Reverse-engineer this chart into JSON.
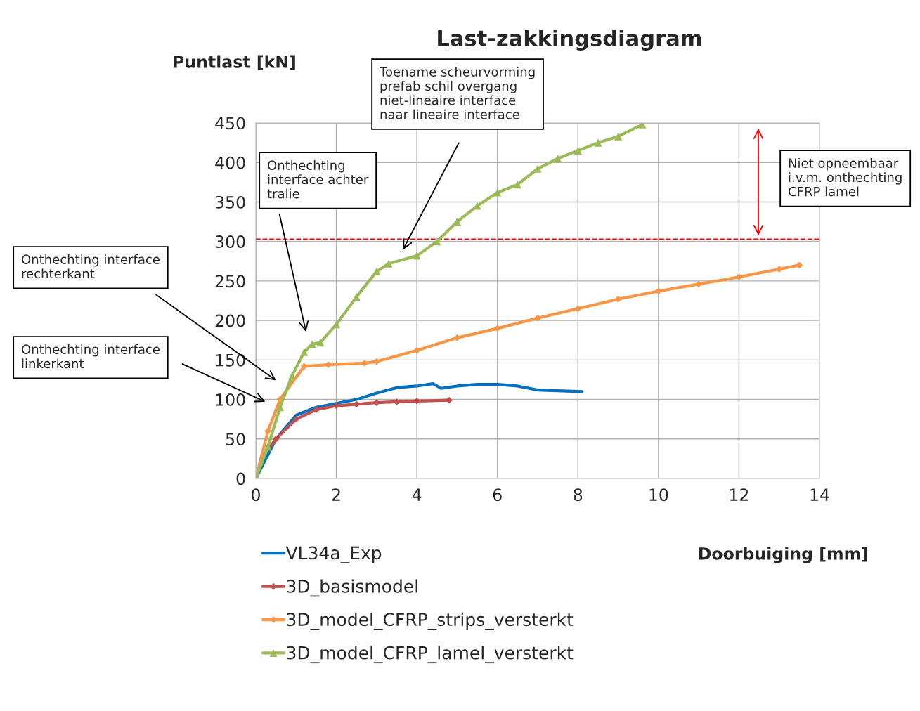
{
  "chart_data": {
    "type": "line",
    "title": "Last-zakkingsdiagram",
    "xlabel": "Doorbuiging [mm]",
    "ylabel": "Puntlast [kN]",
    "xlim": [
      0,
      14
    ],
    "xticks": [
      0,
      2,
      4,
      6,
      8,
      10,
      12,
      14
    ],
    "ylim": [
      0,
      450
    ],
    "yticks": [
      0,
      50,
      100,
      150,
      200,
      250,
      300,
      350,
      400,
      450
    ],
    "grid": true,
    "legend": "bottom",
    "series": [
      {
        "name": "VL34a_Exp",
        "color": "#0070c0",
        "marker": "none",
        "x": [
          0,
          0.5,
          1,
          1.5,
          2,
          2.5,
          3,
          3.5,
          4,
          4.4,
          4.6,
          5,
          5.5,
          6,
          6.5,
          7,
          7.5,
          8.1
        ],
        "values": [
          0,
          50,
          80,
          90,
          95,
          100,
          108,
          115,
          117,
          120,
          114,
          117,
          119,
          119,
          117,
          112,
          111,
          110
        ]
      },
      {
        "name": "3D_basismodel",
        "color": "#c0504d",
        "marker": "diamond",
        "x": [
          0,
          0.2,
          0.5,
          1,
          1.5,
          2,
          2.5,
          3,
          3.5,
          4,
          4.8
        ],
        "values": [
          0,
          30,
          50,
          75,
          87,
          92,
          94,
          96,
          97,
          98,
          99
        ]
      },
      {
        "name": "3D_model_CFRP_strips_versterkt",
        "color": "#f79646",
        "marker": "diamond",
        "x": [
          0,
          0.3,
          0.6,
          1.2,
          1.8,
          2.7,
          3,
          4,
          5,
          6,
          7,
          8,
          9,
          10,
          11,
          12,
          13,
          13.5
        ],
        "values": [
          0,
          60,
          100,
          142,
          144,
          146,
          148,
          162,
          178,
          190,
          203,
          215,
          227,
          237,
          246,
          255,
          265,
          270
        ]
      },
      {
        "name": "3D_model_CFRP_lamel_versterkt",
        "color": "#9bbb59",
        "marker": "triangle",
        "x": [
          0,
          0.3,
          0.6,
          0.9,
          1.2,
          1.4,
          1.6,
          2,
          2.5,
          3,
          3.3,
          4,
          4.5,
          5,
          5.5,
          6,
          6.5,
          7,
          7.5,
          8,
          8.5,
          9,
          9.6
        ],
        "values": [
          0,
          40,
          90,
          130,
          160,
          170,
          172,
          195,
          230,
          262,
          272,
          282,
          300,
          325,
          345,
          362,
          372,
          392,
          405,
          415,
          425,
          433,
          448
        ]
      }
    ],
    "ref_lines": [
      {
        "axis": "y",
        "value": 303,
        "color": "#ff0000",
        "line_style": "dashed"
      }
    ],
    "annotations": [
      "Onthechting interface\nrechterkant",
      "Onthechting interface\nlinkerkant",
      "Onthechting\ninterface achter\ntralie",
      "Toename scheurvorming\nprefab schil overgang\nniet-lineaire interface\nnaar lineaire interface",
      "Niet opneembaar\ni.v.m. onthechting\nCFRP lamel"
    ]
  }
}
